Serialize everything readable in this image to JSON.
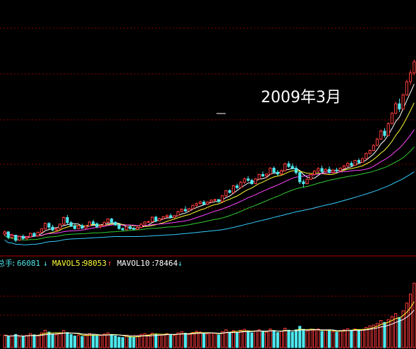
{
  "annotation": "2009年3月",
  "volume_legend": {
    "total_label": "总手",
    "total_value": "66081",
    "mavol5_label": "MAVOL5",
    "mavol5_value": "98053",
    "mavol10_label": "MAVOL10",
    "mavol10_value": "78464",
    "arrow_down": "↓",
    "arrow_up": "↑"
  },
  "colors": {
    "background": "#000000",
    "grid": "#8b0000",
    "separator": "#b00000",
    "up_candle": "#ff3b3b",
    "down_candle": "#4ee8ee",
    "ma5": "#ffffff",
    "ma10": "#ffff33",
    "ma20": "#ff44ff",
    "ma30": "#33cc33",
    "ma60": "#33ccff",
    "legend_total": "#4ee8ee",
    "legend_mavol5": "#ffff33",
    "legend_mavol10": "#ffffff",
    "arrow_down_color": "#4ee8ee",
    "arrow_up_color": "#ff3b3b"
  },
  "chart_data": {
    "type": "candlestick",
    "price_ohlc": [
      [
        16.4,
        17.4,
        15.8,
        17.0
      ],
      [
        17.0,
        17.2,
        15.0,
        15.5
      ],
      [
        15.5,
        16.5,
        15.0,
        16.1
      ],
      [
        16.1,
        16.2,
        14.2,
        14.7
      ],
      [
        14.7,
        16.0,
        14.6,
        15.8
      ],
      [
        15.8,
        16.3,
        14.8,
        15.2
      ],
      [
        15.2,
        15.8,
        14.9,
        15.6
      ],
      [
        15.6,
        16.8,
        15.4,
        16.6
      ],
      [
        16.6,
        16.9,
        15.6,
        15.9
      ],
      [
        15.9,
        17.1,
        15.7,
        16.9
      ],
      [
        16.9,
        18.0,
        16.6,
        17.8
      ],
      [
        17.8,
        19.6,
        17.6,
        19.3
      ],
      [
        19.3,
        19.6,
        17.8,
        18.3
      ],
      [
        18.3,
        18.9,
        17.2,
        17.5
      ],
      [
        17.5,
        18.2,
        16.9,
        17.8
      ],
      [
        17.8,
        19.3,
        17.7,
        19.1
      ],
      [
        19.1,
        21.2,
        18.9,
        20.9
      ],
      [
        20.9,
        21.6,
        19.1,
        19.5
      ],
      [
        19.5,
        20.0,
        18.3,
        18.6
      ],
      [
        18.6,
        19.2,
        17.6,
        17.9
      ],
      [
        17.9,
        18.9,
        17.7,
        18.7
      ],
      [
        18.7,
        19.2,
        17.8,
        18.0
      ],
      [
        18.0,
        18.8,
        17.7,
        18.6
      ],
      [
        18.6,
        19.9,
        18.5,
        19.7
      ],
      [
        19.7,
        20.3,
        18.9,
        19.2
      ],
      [
        19.2,
        19.6,
        18.0,
        18.4
      ],
      [
        18.4,
        19.0,
        17.9,
        18.7
      ],
      [
        18.7,
        19.8,
        18.6,
        19.6
      ],
      [
        19.6,
        20.7,
        19.4,
        20.5
      ],
      [
        20.5,
        20.8,
        19.3,
        19.6
      ],
      [
        19.6,
        19.9,
        18.6,
        18.9
      ],
      [
        18.9,
        19.1,
        17.6,
        17.9
      ],
      [
        17.9,
        18.2,
        17.3,
        17.6
      ],
      [
        17.6,
        18.6,
        17.5,
        18.4
      ],
      [
        18.4,
        18.7,
        17.6,
        17.9
      ],
      [
        17.9,
        18.3,
        17.5,
        17.7
      ],
      [
        17.7,
        18.5,
        17.6,
        18.2
      ],
      [
        18.2,
        19.3,
        18.1,
        19.1
      ],
      [
        19.1,
        19.9,
        19.0,
        19.7
      ],
      [
        19.7,
        20.1,
        19.4,
        19.8
      ],
      [
        19.8,
        21.2,
        19.7,
        21.0
      ],
      [
        21.0,
        21.4,
        19.6,
        20.0
      ],
      [
        20.0,
        20.9,
        19.9,
        20.6
      ],
      [
        20.6,
        21.3,
        20.4,
        21.1
      ],
      [
        21.1,
        21.8,
        20.8,
        21.4
      ],
      [
        21.4,
        22.0,
        20.7,
        20.9
      ],
      [
        20.9,
        21.6,
        20.7,
        21.4
      ],
      [
        21.4,
        22.8,
        21.3,
        22.5
      ],
      [
        22.5,
        23.4,
        22.3,
        23.1
      ],
      [
        23.1,
        24.0,
        22.4,
        22.7
      ],
      [
        22.7,
        23.5,
        22.6,
        23.3
      ],
      [
        23.3,
        24.4,
        23.1,
        24.2
      ],
      [
        24.2,
        25.0,
        23.8,
        24.7
      ],
      [
        24.7,
        25.4,
        24.4,
        25.1
      ],
      [
        25.1,
        25.6,
        24.2,
        24.5
      ],
      [
        24.5,
        25.3,
        24.3,
        25.1
      ],
      [
        25.1,
        25.9,
        24.8,
        25.6
      ],
      [
        25.6,
        26.0,
        25.2,
        25.8
      ],
      [
        25.8,
        25.9,
        24.9,
        25.2
      ],
      [
        25.2,
        27.0,
        25.1,
        26.8
      ],
      [
        26.8,
        28.4,
        26.6,
        28.2
      ],
      [
        28.2,
        28.6,
        27.4,
        27.7
      ],
      [
        27.7,
        29.8,
        27.5,
        29.5
      ],
      [
        29.5,
        30.1,
        28.6,
        29.0
      ],
      [
        29.0,
        30.8,
        28.9,
        30.5
      ],
      [
        30.5,
        31.8,
        30.0,
        31.4
      ],
      [
        31.4,
        32.2,
        30.6,
        31.0
      ],
      [
        31.0,
        31.4,
        29.8,
        30.1
      ],
      [
        30.1,
        31.6,
        30.0,
        31.4
      ],
      [
        31.4,
        32.8,
        31.2,
        32.6
      ],
      [
        32.6,
        33.4,
        31.9,
        32.2
      ],
      [
        32.2,
        32.9,
        31.5,
        32.7
      ],
      [
        32.7,
        34.6,
        32.6,
        34.3
      ],
      [
        34.3,
        34.8,
        32.8,
        33.2
      ],
      [
        33.2,
        33.8,
        32.3,
        32.7
      ],
      [
        32.7,
        34.0,
        32.5,
        33.6
      ],
      [
        33.6,
        35.8,
        33.4,
        35.5
      ],
      [
        35.5,
        36.2,
        34.4,
        34.8
      ],
      [
        34.8,
        35.6,
        34.0,
        34.3
      ],
      [
        34.3,
        35.0,
        32.6,
        33.1
      ],
      [
        33.1,
        33.4,
        30.0,
        30.6
      ],
      [
        30.6,
        31.2,
        29.0,
        30.1
      ],
      [
        30.1,
        31.6,
        29.9,
        31.3
      ],
      [
        31.3,
        32.9,
        31.1,
        32.6
      ],
      [
        32.6,
        33.8,
        32.4,
        33.5
      ],
      [
        33.5,
        34.6,
        33.2,
        34.2
      ],
      [
        34.2,
        35.0,
        33.0,
        33.4
      ],
      [
        33.4,
        34.3,
        33.2,
        34.0
      ],
      [
        34.0,
        34.8,
        32.8,
        33.2
      ],
      [
        33.2,
        34.1,
        32.9,
        33.8
      ],
      [
        33.8,
        34.4,
        33.1,
        33.6
      ],
      [
        33.6,
        34.6,
        33.5,
        34.3
      ],
      [
        34.3,
        35.2,
        34.0,
        34.9
      ],
      [
        34.9,
        36.0,
        34.7,
        35.6
      ],
      [
        35.6,
        36.2,
        34.8,
        35.1
      ],
      [
        35.1,
        36.6,
        35.0,
        36.4
      ],
      [
        36.4,
        37.0,
        35.6,
        35.9
      ],
      [
        35.9,
        37.2,
        35.8,
        36.9
      ],
      [
        36.9,
        38.6,
        36.8,
        38.3
      ],
      [
        38.3,
        39.4,
        38.0,
        39.1
      ],
      [
        39.1,
        40.8,
        38.9,
        40.5
      ],
      [
        40.5,
        42.6,
        40.3,
        42.2
      ],
      [
        42.2,
        44.8,
        42.0,
        44.4
      ],
      [
        44.4,
        45.2,
        42.6,
        43.2
      ],
      [
        43.2,
        46.8,
        43.0,
        46.4
      ],
      [
        46.4,
        49.6,
        46.2,
        49.2
      ],
      [
        49.2,
        52.4,
        49.0,
        51.8
      ],
      [
        51.8,
        53.2,
        49.6,
        50.4
      ],
      [
        50.4,
        54.6,
        50.2,
        54.2
      ],
      [
        54.2,
        58.4,
        54.0,
        57.8
      ],
      [
        57.8,
        61.0,
        56.9,
        60.2
      ],
      [
        60.2,
        63.8,
        59.6,
        63.2
      ]
    ],
    "volume": [
      32,
      28,
      30,
      34,
      27,
      29,
      31,
      36,
      33,
      30,
      38,
      45,
      40,
      35,
      33,
      37,
      44,
      39,
      34,
      30,
      31,
      29,
      33,
      36,
      32,
      30,
      31,
      35,
      38,
      34,
      30,
      27,
      26,
      29,
      28,
      27,
      30,
      34,
      36,
      33,
      37,
      35,
      32,
      34,
      36,
      33,
      31,
      38,
      41,
      37,
      34,
      39,
      42,
      40,
      36,
      35,
      38,
      37,
      33,
      41,
      46,
      40,
      44,
      39,
      45,
      47,
      42,
      38,
      43,
      46,
      41,
      40,
      48,
      44,
      39,
      42,
      50,
      45,
      40,
      46,
      55,
      47,
      43,
      46,
      44,
      48,
      42,
      45,
      43,
      41,
      40,
      44,
      46,
      49,
      45,
      48,
      44,
      47,
      52,
      56,
      58,
      62,
      70,
      65,
      72,
      80,
      88,
      78,
      95,
      115,
      138,
      166
    ],
    "volume_max": 200,
    "ylim": [
      12,
      80
    ],
    "candles": 112,
    "moving_averages": [
      5,
      10,
      20,
      30,
      60
    ]
  }
}
